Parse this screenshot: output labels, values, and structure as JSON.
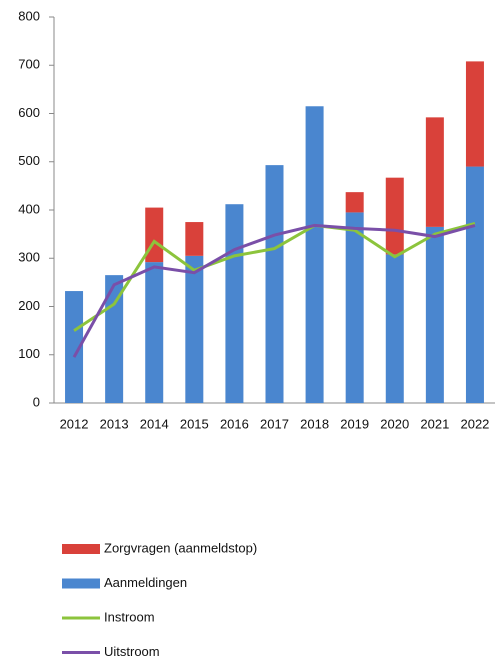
{
  "chart_data": {
    "type": "bar",
    "categories": [
      "2012",
      "2013",
      "2014",
      "2015",
      "2016",
      "2017",
      "2018",
      "2019",
      "2020",
      "2021",
      "2022"
    ],
    "series": [
      {
        "name": "Zorgvragen (aanmeldstop)",
        "type": "bar",
        "color": "#d9413a",
        "values": [
          null,
          null,
          113,
          70,
          null,
          null,
          null,
          42,
          159,
          227,
          218
        ]
      },
      {
        "name": "Aanmeldingen",
        "type": "bar",
        "color": "#4a86cf",
        "values": [
          232,
          265,
          292,
          305,
          412,
          493,
          615,
          395,
          308,
          365,
          490
        ]
      },
      {
        "name": "Instroom",
        "type": "line",
        "color": "#8cc43c",
        "values": [
          150,
          205,
          335,
          275,
          305,
          320,
          368,
          358,
          303,
          350,
          372
        ]
      },
      {
        "name": "Uitstroom",
        "type": "line",
        "color": "#7a4fa8",
        "values": [
          95,
          245,
          282,
          270,
          318,
          348,
          368,
          362,
          358,
          345,
          368
        ]
      }
    ],
    "ylim": [
      0,
      800
    ],
    "yticks": [
      0,
      100,
      200,
      300,
      400,
      500,
      600,
      700,
      800
    ],
    "grid": false
  }
}
